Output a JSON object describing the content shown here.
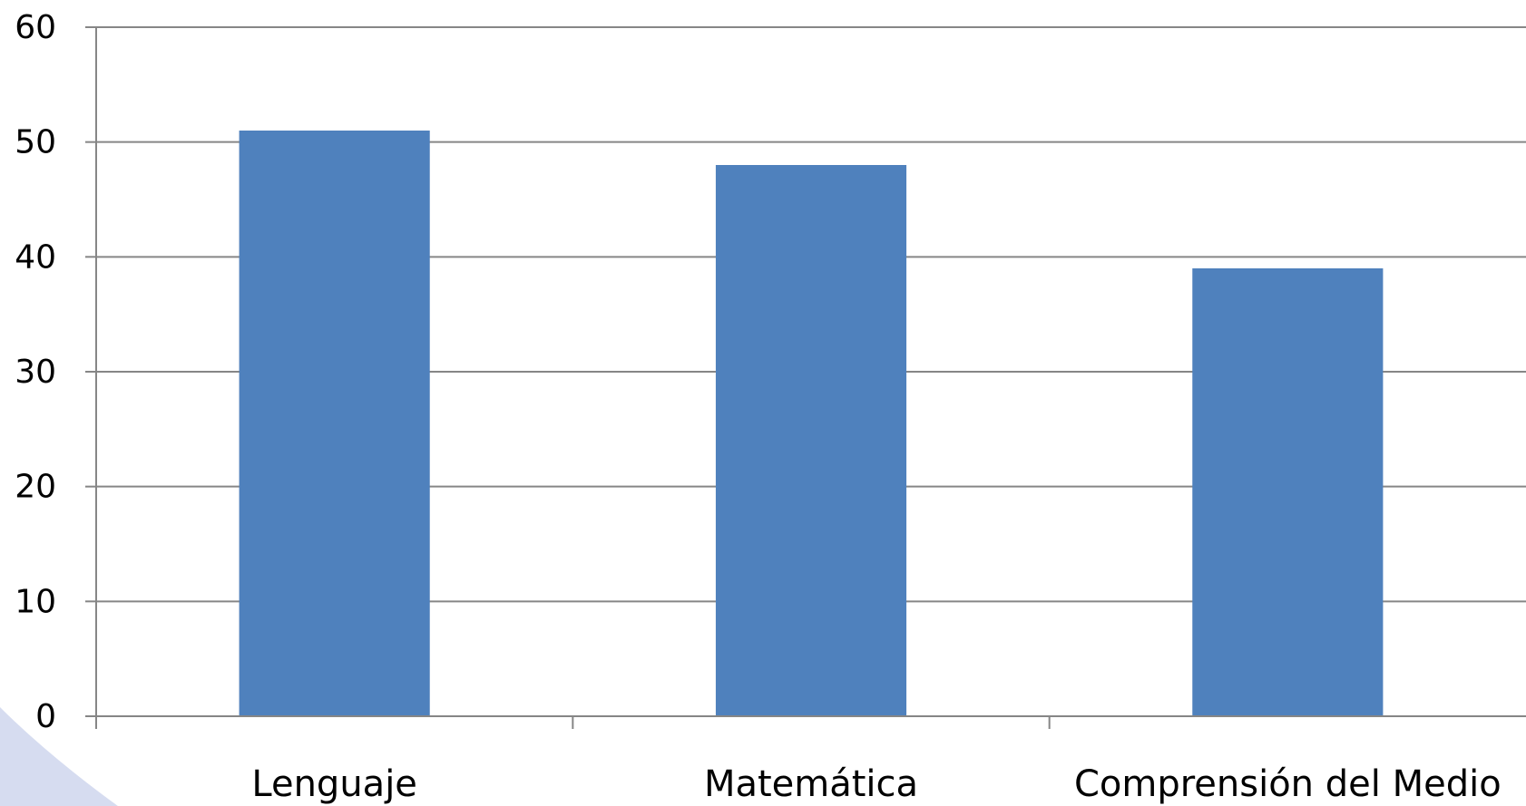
{
  "chart_data": {
    "type": "bar",
    "categories": [
      "Lenguaje",
      "Matemática",
      "Comprensión del Medio"
    ],
    "values": [
      51,
      48,
      39
    ],
    "ylim": [
      0,
      60
    ],
    "yticks": [
      0,
      10,
      20,
      30,
      40,
      50,
      60
    ],
    "grid": true,
    "legend": "none",
    "colors": {
      "bar": "#4F81BD",
      "gridline": "#868686",
      "axis": "#868686",
      "decor": "#D6DCF0"
    }
  }
}
